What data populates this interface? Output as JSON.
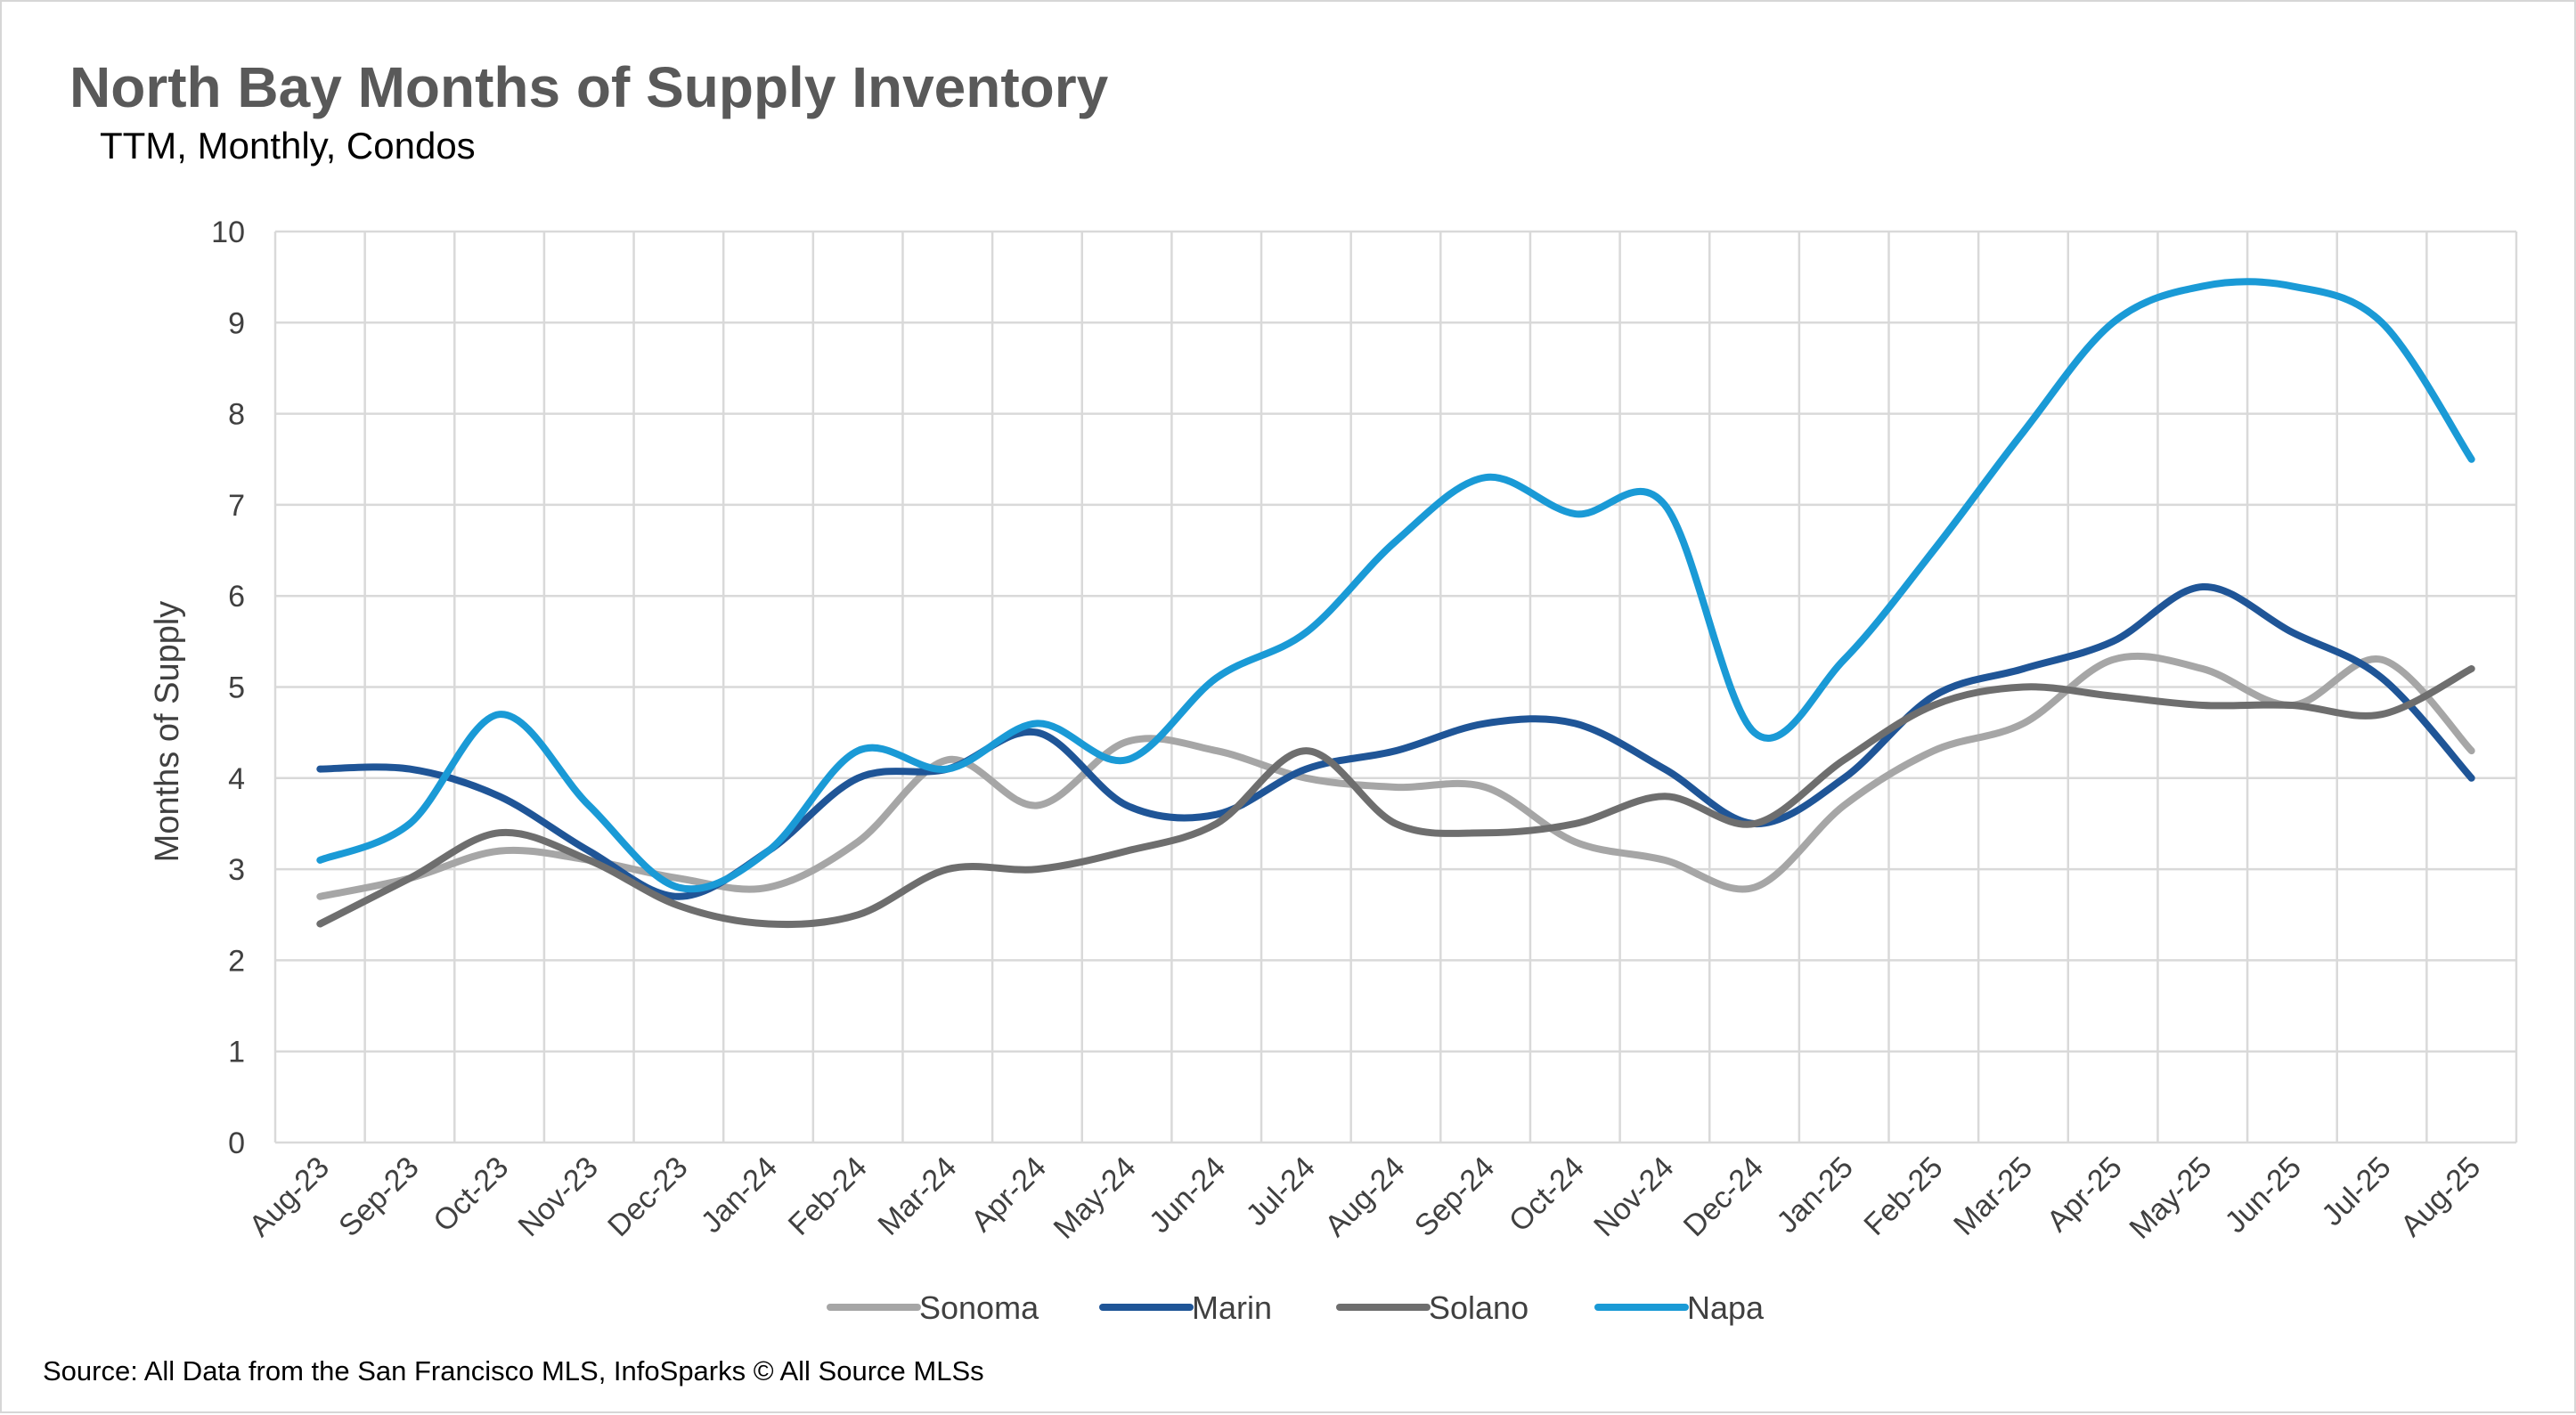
{
  "chart_data": {
    "type": "line",
    "title": "North Bay Months of Supply Inventory",
    "subtitle": "TTM, Monthly, Condos",
    "ylabel": "Months of Supply",
    "xlabel": "",
    "ylim": [
      0,
      10
    ],
    "yticks": [
      "0",
      "1",
      "2",
      "3",
      "4",
      "5",
      "6",
      "7",
      "8",
      "9",
      "10"
    ],
    "grid": true,
    "legend_position": "bottom",
    "categories": [
      "Aug-23",
      "Sep-23",
      "Oct-23",
      "Nov-23",
      "Dec-23",
      "Jan-24",
      "Feb-24",
      "Mar-24",
      "Apr-24",
      "May-24",
      "Jun-24",
      "Jul-24",
      "Aug-24",
      "Sep-24",
      "Oct-24",
      "Nov-24",
      "Dec-24",
      "Jan-25",
      "Feb-25",
      "Mar-25",
      "Apr-25",
      "May-25",
      "Jun-25",
      "Jul-25",
      "Aug-25"
    ],
    "series": [
      {
        "name": "Sonoma",
        "color": "#a6a6a6",
        "values": [
          2.7,
          2.9,
          3.2,
          3.1,
          2.9,
          2.8,
          3.3,
          4.2,
          3.7,
          4.4,
          4.3,
          4.0,
          3.9,
          3.9,
          3.3,
          3.1,
          2.8,
          3.7,
          4.3,
          4.6,
          5.3,
          5.2,
          4.8,
          5.3,
          4.3
        ]
      },
      {
        "name": "Marin",
        "color": "#1f5597",
        "values": [
          4.1,
          4.1,
          3.8,
          3.2,
          2.7,
          3.2,
          4.0,
          4.1,
          4.5,
          3.7,
          3.6,
          4.1,
          4.3,
          4.6,
          4.6,
          4.1,
          3.5,
          4.0,
          4.9,
          5.2,
          5.5,
          6.1,
          5.6,
          5.1,
          4.0
        ]
      },
      {
        "name": "Solano",
        "color": "#6e6e6e",
        "values": [
          2.4,
          2.9,
          3.4,
          3.1,
          2.6,
          2.4,
          2.5,
          3.0,
          3.0,
          3.2,
          3.5,
          4.3,
          3.5,
          3.4,
          3.5,
          3.8,
          3.5,
          4.2,
          4.8,
          5.0,
          4.9,
          4.8,
          4.8,
          4.7,
          5.2
        ]
      },
      {
        "name": "Napa",
        "color": "#1a9ad6",
        "values": [
          3.1,
          3.5,
          4.7,
          3.7,
          2.8,
          3.2,
          4.3,
          4.1,
          4.6,
          4.2,
          5.1,
          5.6,
          6.6,
          7.3,
          6.9,
          7.0,
          4.5,
          5.3,
          6.5,
          7.8,
          9.0,
          9.4,
          9.4,
          9.0,
          7.5
        ]
      }
    ],
    "source": "Source: All Data from the San Francisco MLS, InfoSparks © All Source MLSs"
  }
}
